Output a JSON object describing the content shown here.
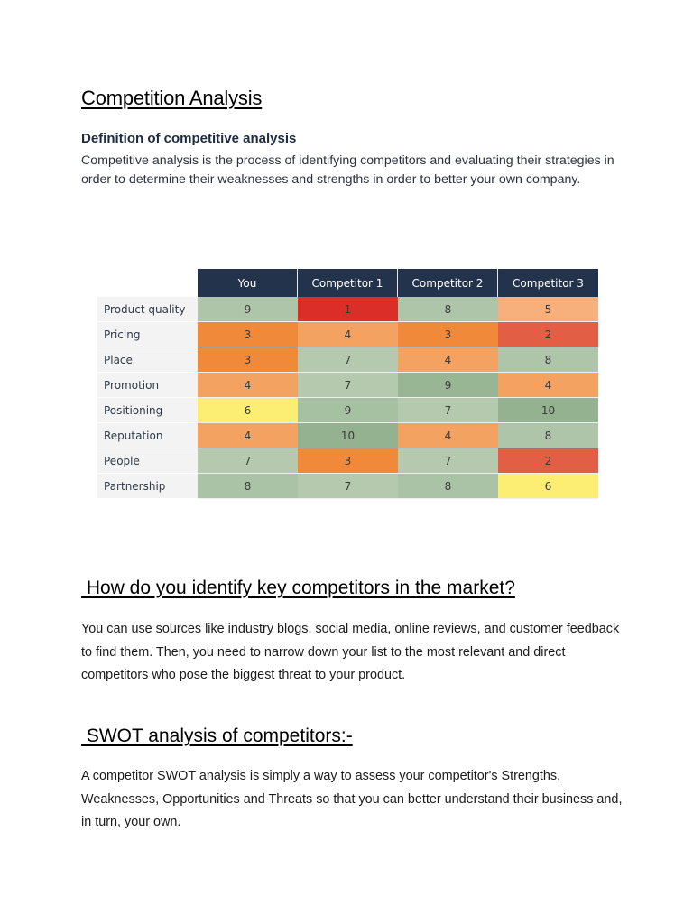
{
  "document": {
    "title": "Competition Analysis",
    "definition": {
      "heading": "Definition of competitive analysis",
      "body": "Competitive analysis is the process of identifying competitors and evaluating their strategies in order to determine their weaknesses and strengths in order to better your own company."
    },
    "section_identify": {
      "heading": " How do you identify key competitors in the market?",
      "body": "You can use sources like industry blogs, social media, online reviews, and customer feedback to find them. Then, you need to narrow down your list to the most relevant and direct competitors who pose the biggest threat to your product."
    },
    "section_swot": {
      "heading": " SWOT analysis of competitors:-",
      "body": "A competitor SWOT analysis is simply a way to assess your competitor's Strengths, Weaknesses, Opportunities and Threats so that you can better understand their business and, in turn, your own."
    }
  },
  "table": {
    "columns": [
      "You",
      "Competitor 1",
      "Competitor 2",
      "Competitor 3"
    ],
    "rows": [
      {
        "label": "Product quality",
        "values": [
          "9",
          "1",
          "8",
          "5"
        ],
        "colors": [
          "#aec5aa",
          "#dc2e28",
          "#aec5aa",
          "#f7b07c"
        ]
      },
      {
        "label": "Pricing",
        "values": [
          "3",
          "4",
          "3",
          "2"
        ],
        "colors": [
          "#f08a3a",
          "#f4a262",
          "#f08a3a",
          "#e25e44"
        ]
      },
      {
        "label": "Place",
        "values": [
          "3",
          "7",
          "4",
          "8"
        ],
        "colors": [
          "#f08a3a",
          "#b4c9ae",
          "#f4a262",
          "#aec5aa"
        ]
      },
      {
        "label": "Promotion",
        "values": [
          "4",
          "7",
          "9",
          "4"
        ],
        "colors": [
          "#f4a262",
          "#b4c9ae",
          "#98b694",
          "#f4a262"
        ]
      },
      {
        "label": "Positioning",
        "values": [
          "6",
          "9",
          "7",
          "10"
        ],
        "colors": [
          "#fbee72",
          "#a6c0a2",
          "#b4c9ae",
          "#94b290"
        ]
      },
      {
        "label": "Reputation",
        "values": [
          "4",
          "10",
          "4",
          "8"
        ],
        "colors": [
          "#f4a262",
          "#94b290",
          "#f4a262",
          "#aec5aa"
        ]
      },
      {
        "label": "People",
        "values": [
          "7",
          "3",
          "7",
          "2"
        ],
        "colors": [
          "#b4c9ae",
          "#f08a3a",
          "#b4c9ae",
          "#e25e44"
        ]
      },
      {
        "label": "Partnership",
        "values": [
          "8",
          "7",
          "8",
          "6"
        ],
        "colors": [
          "#aac3a6",
          "#b4c9ae",
          "#aac3a6",
          "#fbee72"
        ]
      }
    ],
    "header_color": "#22334b"
  }
}
